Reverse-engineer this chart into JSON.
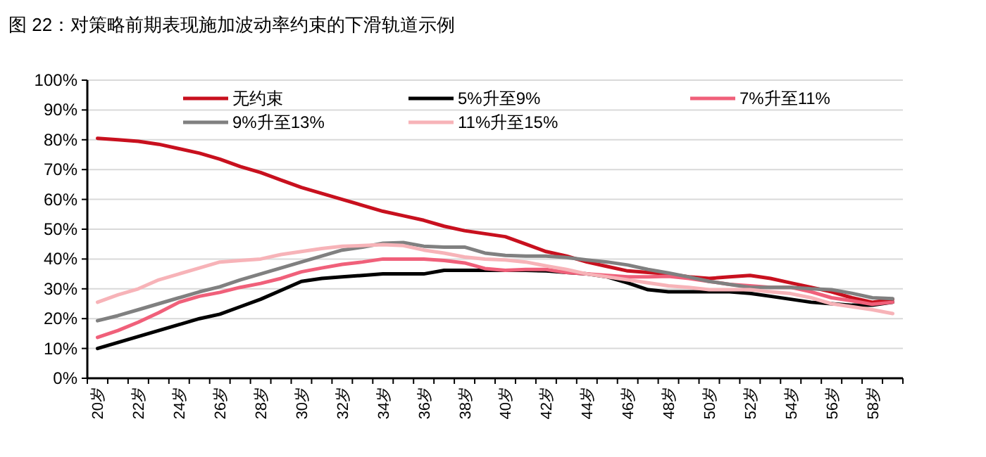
{
  "chart_data": {
    "type": "line",
    "title": "图 22：对策略前期表现施加波动率约束的下滑轨道示例",
    "categories": [
      "20岁",
      null,
      "22岁",
      null,
      "24岁",
      null,
      "26岁",
      null,
      "28岁",
      null,
      "30岁",
      null,
      "32岁",
      null,
      "34岁",
      null,
      "36岁",
      null,
      "38岁",
      null,
      "40岁",
      null,
      "42岁",
      null,
      "44岁",
      null,
      "46岁",
      null,
      "48岁",
      null,
      "50岁",
      null,
      "52岁",
      null,
      "54岁",
      null,
      "56岁",
      null,
      "58岁",
      null
    ],
    "series": [
      {
        "name": "无约束",
        "color": "#c8101e",
        "values": [
          80.5,
          80,
          79.5,
          78.5,
          77,
          75.5,
          73.5,
          71,
          69,
          66.5,
          64,
          62,
          60,
          58,
          56,
          54.5,
          53,
          51,
          49.5,
          48.5,
          47.5,
          45,
          42.5,
          41,
          39,
          37.5,
          36,
          35.5,
          35,
          34,
          33.5,
          34,
          34.5,
          33.5,
          32,
          30.5,
          29,
          27,
          25.5,
          26.5
        ]
      },
      {
        "name": "5%升至9%",
        "color": "#000000",
        "values": [
          10,
          12,
          14,
          16,
          18,
          20,
          21.5,
          24,
          26.5,
          29.5,
          32.5,
          33.5,
          34,
          34.5,
          35,
          35,
          35,
          36.2,
          36.2,
          36.2,
          36.2,
          36.2,
          36,
          35.5,
          35,
          34,
          32,
          29.7,
          29,
          29,
          29,
          29,
          28.5,
          27.5,
          26.5,
          25.5,
          25,
          24.5,
          24.5,
          25.5
        ]
      },
      {
        "name": "7%升至11%",
        "color": "#f0607a",
        "values": [
          13.7,
          16,
          18.8,
          22,
          25.5,
          27.5,
          28.8,
          30.5,
          31.8,
          33.5,
          35.7,
          37,
          38.2,
          39,
          40,
          40,
          40,
          39.5,
          38.7,
          36.8,
          36.2,
          36.5,
          36.5,
          35.5,
          35,
          34.5,
          34,
          34,
          34.2,
          33.5,
          32.5,
          31.5,
          31,
          30.5,
          30.5,
          29,
          27,
          26,
          24.8,
          25.5
        ]
      },
      {
        "name": "9%升至13%",
        "color": "#808080",
        "values": [
          19.3,
          21,
          23,
          25,
          27,
          29,
          30.7,
          33,
          35,
          37,
          39,
          41,
          43,
          44,
          45.3,
          45.5,
          44.3,
          44,
          44,
          42,
          41.2,
          41,
          41,
          40.5,
          39.7,
          39,
          38,
          36.5,
          35.3,
          34,
          32.5,
          31.5,
          30.5,
          30.5,
          30.5,
          30,
          29.7,
          28.5,
          27,
          26.7
        ]
      },
      {
        "name": "11%升至15%",
        "color": "#f7b3b8",
        "values": [
          25.5,
          28,
          30,
          33,
          35,
          37,
          39,
          39.5,
          40,
          41.5,
          42.5,
          43.5,
          44.3,
          44.5,
          44.8,
          44.5,
          43,
          42,
          40.7,
          40,
          39.7,
          39,
          37.7,
          36.5,
          35,
          34,
          33,
          32,
          31,
          30.5,
          29.7,
          29.7,
          29.7,
          29,
          28.4,
          27,
          25,
          24,
          23,
          21.7
        ]
      }
    ],
    "ylim": [
      0,
      100
    ],
    "yticks": [
      {
        "value": 0,
        "label": "0%"
      },
      {
        "value": 10,
        "label": "10%"
      },
      {
        "value": 20,
        "label": "20%"
      },
      {
        "value": 30,
        "label": "30%"
      },
      {
        "value": 40,
        "label": "40%"
      },
      {
        "value": 50,
        "label": "50%"
      },
      {
        "value": 60,
        "label": "60%"
      },
      {
        "value": 70,
        "label": "70%"
      },
      {
        "value": 80,
        "label": "80%"
      },
      {
        "value": 90,
        "label": "90%"
      },
      {
        "value": 100,
        "label": "100%"
      }
    ],
    "grid": "y",
    "legend": "top",
    "marker": "none",
    "line_style": "solid"
  }
}
